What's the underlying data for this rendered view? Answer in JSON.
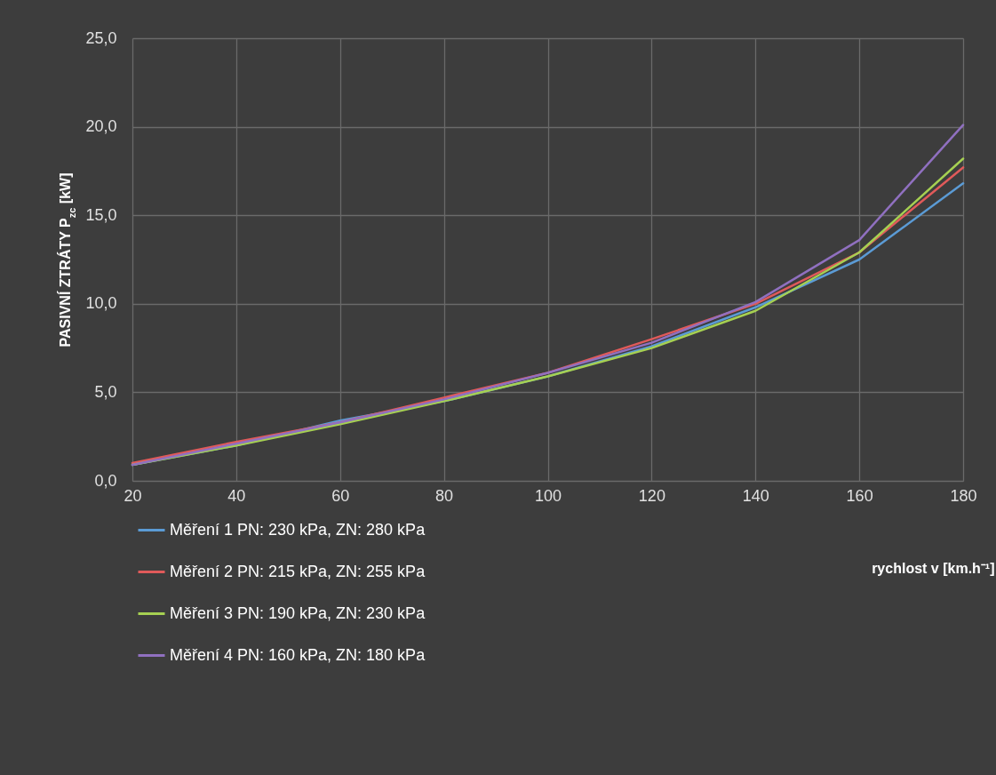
{
  "chart_data": {
    "type": "line",
    "xlabel": "rychlost v [km.h⁻¹]",
    "ylabel": "PASIVNÍ ZTRÁTY  P$_{zc}$ [kW]",
    "x": [
      20,
      40,
      60,
      80,
      100,
      120,
      140,
      160,
      180
    ],
    "series": [
      {
        "name": "Měření 1  PN: 230 kPa,  ZN: 280 kPa",
        "color": "#5b9bd5",
        "values": [
          0.9,
          2.0,
          3.4,
          4.5,
          5.9,
          7.6,
          9.8,
          12.5,
          16.8
        ]
      },
      {
        "name": "Měření 2  PN: 215 kPa,  ZN: 255 kPa",
        "color": "#e05a5a",
        "values": [
          1.0,
          2.2,
          3.3,
          4.7,
          6.1,
          8.0,
          10.0,
          12.9,
          17.7
        ]
      },
      {
        "name": "Měření 3  PN: 190 kPa,  ZN: 230 kPa",
        "color": "#a6d052",
        "values": [
          0.9,
          2.0,
          3.2,
          4.5,
          5.9,
          7.5,
          9.6,
          12.9,
          18.2
        ]
      },
      {
        "name": "Měření 4  PN: 160 kPa,  ZN: 180 kPa",
        "color": "#9070c0",
        "values": [
          0.9,
          2.1,
          3.3,
          4.6,
          6.1,
          7.8,
          10.1,
          13.6,
          20.1
        ]
      }
    ],
    "xlim": [
      20,
      180
    ],
    "xticks": [
      20,
      40,
      60,
      80,
      100,
      120,
      140,
      160,
      180
    ],
    "ylim": [
      0,
      25
    ],
    "yticks": [
      {
        "value": 0,
        "label": "0,0"
      },
      {
        "value": 5,
        "label": "5,0"
      },
      {
        "value": 10,
        "label": "10,0"
      },
      {
        "value": 15,
        "label": "15,0"
      },
      {
        "value": 20,
        "label": "20,0"
      },
      {
        "value": 25,
        "label": "25,0"
      }
    ],
    "grid": true,
    "legend": "bottom",
    "marker": "none",
    "line_style": "solid"
  }
}
